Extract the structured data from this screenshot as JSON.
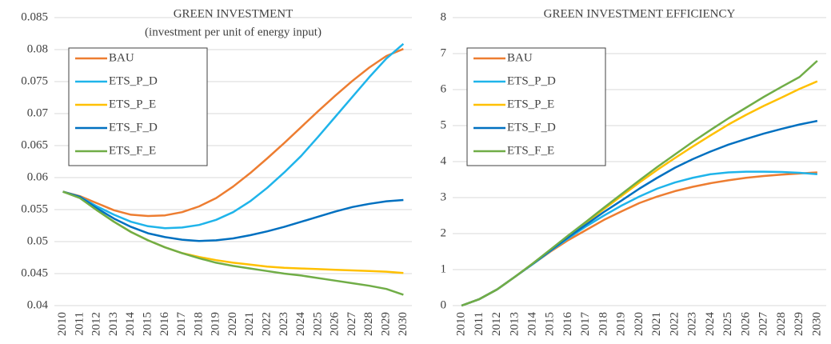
{
  "chart_data": [
    {
      "type": "line",
      "title": "GREEN INVESTMENT",
      "subtitle": "(investment per unit of energy input)",
      "categories": [
        "2010",
        "2011",
        "2012",
        "2013",
        "2014",
        "2015",
        "2016",
        "2017",
        "2018",
        "2019",
        "2020",
        "2021",
        "2022",
        "2023",
        "2024",
        "2025",
        "2026",
        "2027",
        "2028",
        "2029",
        "2030"
      ],
      "ylim": [
        0.04,
        0.085
      ],
      "yticks": [
        0.04,
        0.045,
        0.05,
        0.055,
        0.06,
        0.065,
        0.07,
        0.075,
        0.08,
        0.085
      ],
      "grid": true,
      "legend": "upper left",
      "series": [
        {
          "name": "BAU",
          "color": "#ed7d31",
          "values": [
            0.0578,
            0.0571,
            0.056,
            0.0549,
            0.0542,
            0.054,
            0.0541,
            0.0546,
            0.0555,
            0.0568,
            0.0586,
            0.0607,
            0.063,
            0.0654,
            0.0679,
            0.0704,
            0.0728,
            0.0751,
            0.0772,
            0.079,
            0.0801
          ]
        },
        {
          "name": "ETS_P_D",
          "color": "#1fb4ea",
          "values": [
            0.0578,
            0.057,
            0.0555,
            0.0542,
            0.0531,
            0.0524,
            0.0521,
            0.0522,
            0.0526,
            0.0534,
            0.0546,
            0.0563,
            0.0584,
            0.0608,
            0.0634,
            0.0664,
            0.0695,
            0.0726,
            0.0757,
            0.0786,
            0.0809
          ]
        },
        {
          "name": "ETS_P_E",
          "color": "#ffc000",
          "values": [
            0.0578,
            0.0569,
            0.0549,
            0.0531,
            0.0515,
            0.0502,
            0.0491,
            0.0482,
            0.0476,
            0.0471,
            0.0467,
            0.0464,
            0.0461,
            0.0459,
            0.0458,
            0.0457,
            0.0456,
            0.0455,
            0.0454,
            0.0453,
            0.0451
          ]
        },
        {
          "name": "ETS_F_D",
          "color": "#0070c0",
          "values": [
            0.0578,
            0.057,
            0.0552,
            0.0536,
            0.0523,
            0.0513,
            0.0507,
            0.0503,
            0.0501,
            0.0502,
            0.0505,
            0.051,
            0.0516,
            0.0523,
            0.0531,
            0.0539,
            0.0547,
            0.0554,
            0.0559,
            0.0563,
            0.0565
          ]
        },
        {
          "name": "ETS_F_E",
          "color": "#70ad47",
          "values": [
            0.0578,
            0.0568,
            0.0549,
            0.0531,
            0.0515,
            0.0502,
            0.0491,
            0.0482,
            0.0474,
            0.0467,
            0.0462,
            0.0458,
            0.0454,
            0.045,
            0.0447,
            0.0443,
            0.0439,
            0.0435,
            0.0431,
            0.0426,
            0.0417
          ]
        }
      ]
    },
    {
      "type": "line",
      "title": "GREEN INVESTMENT EFFICIENCY",
      "categories": [
        "2010",
        "2011",
        "2012",
        "2013",
        "2014",
        "2015",
        "2016",
        "2017",
        "2018",
        "2019",
        "2020",
        "2021",
        "2022",
        "2023",
        "2024",
        "2025",
        "2026",
        "2027",
        "2028",
        "2029",
        "2030"
      ],
      "ylim": [
        0,
        8
      ],
      "yticks": [
        0,
        1,
        2,
        3,
        4,
        5,
        6,
        7,
        8
      ],
      "grid": true,
      "legend": "upper left",
      "series": [
        {
          "name": "BAU",
          "color": "#ed7d31",
          "values": [
            0,
            0.18,
            0.45,
            0.8,
            1.15,
            1.5,
            1.82,
            2.1,
            2.38,
            2.62,
            2.85,
            3.03,
            3.18,
            3.3,
            3.4,
            3.48,
            3.55,
            3.6,
            3.64,
            3.67,
            3.7
          ]
        },
        {
          "name": "ETS_P_D",
          "color": "#1fb4ea",
          "values": [
            0,
            0.18,
            0.45,
            0.8,
            1.15,
            1.52,
            1.87,
            2.2,
            2.5,
            2.78,
            3.03,
            3.25,
            3.42,
            3.55,
            3.65,
            3.7,
            3.72,
            3.72,
            3.71,
            3.69,
            3.65
          ]
        },
        {
          "name": "ETS_P_E",
          "color": "#ffc000",
          "values": [
            0,
            0.18,
            0.45,
            0.8,
            1.17,
            1.55,
            1.93,
            2.3,
            2.68,
            3.05,
            3.42,
            3.77,
            4.1,
            4.42,
            4.73,
            5.03,
            5.3,
            5.55,
            5.78,
            6.02,
            6.23
          ]
        },
        {
          "name": "ETS_F_D",
          "color": "#0070c0",
          "values": [
            0,
            0.18,
            0.45,
            0.8,
            1.16,
            1.53,
            1.9,
            2.25,
            2.6,
            2.92,
            3.25,
            3.55,
            3.83,
            4.07,
            4.28,
            4.47,
            4.63,
            4.78,
            4.91,
            5.03,
            5.13
          ]
        },
        {
          "name": "ETS_F_E",
          "color": "#70ad47",
          "values": [
            0,
            0.18,
            0.45,
            0.8,
            1.17,
            1.56,
            1.95,
            2.33,
            2.72,
            3.1,
            3.48,
            3.85,
            4.2,
            4.55,
            4.88,
            5.2,
            5.5,
            5.8,
            6.08,
            6.35,
            6.8
          ]
        }
      ]
    }
  ]
}
